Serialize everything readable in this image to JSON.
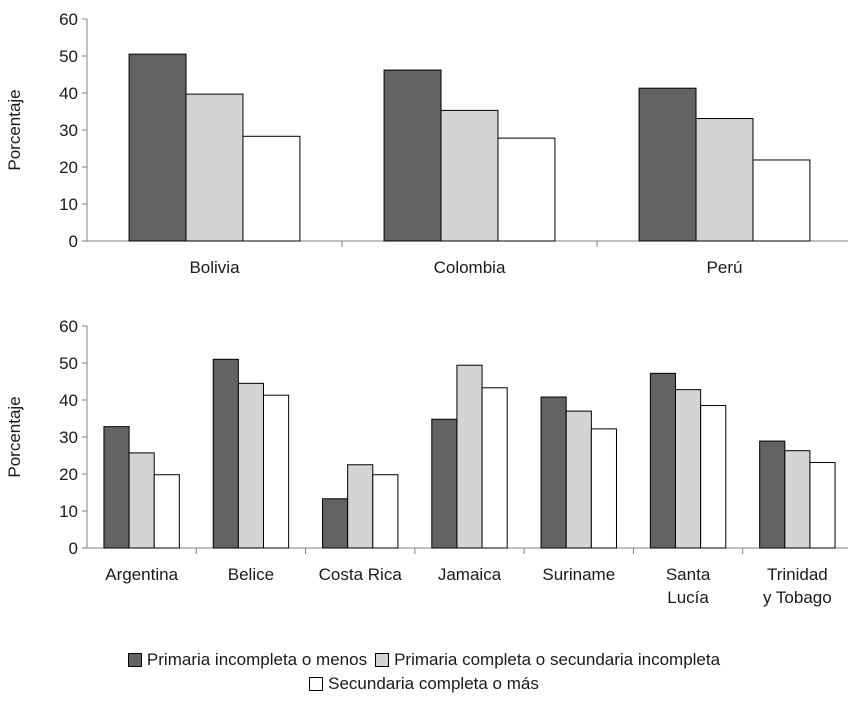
{
  "chart_data": [
    {
      "type": "bar",
      "ylabel": "Porcentaje",
      "ylim": [
        0,
        60
      ],
      "yticks": [
        0,
        10,
        20,
        30,
        40,
        50,
        60
      ],
      "categories": [
        "Bolivia",
        "Colombia",
        "Perú"
      ],
      "series": [
        {
          "name": "Primaria incompleta o menos",
          "values": [
            50.5,
            46.2,
            41.3
          ]
        },
        {
          "name": "Primaria completa o secundaria incompleta",
          "values": [
            39.7,
            35.3,
            33.1
          ]
        },
        {
          "name": "Secundaria completa o más",
          "values": [
            28.3,
            27.8,
            21.9
          ]
        }
      ]
    },
    {
      "type": "bar",
      "ylabel": "Porcentaje",
      "ylim": [
        0,
        60
      ],
      "yticks": [
        0,
        10,
        20,
        30,
        40,
        50,
        60
      ],
      "categories": [
        "Argentina",
        "Belice",
        "Costa Rica",
        "Jamaica",
        "Suriname",
        "Santa\nLucía",
        "Trinidad\ny Tobago"
      ],
      "series": [
        {
          "name": "Primaria incompleta o menos",
          "values": [
            32.8,
            51.0,
            13.3,
            34.8,
            40.8,
            47.2,
            28.9
          ]
        },
        {
          "name": "Primaria completa o secundaria incompleta",
          "values": [
            25.7,
            44.5,
            22.5,
            49.4,
            37.0,
            42.8,
            26.3
          ]
        },
        {
          "name": "Secundaria completa o más",
          "values": [
            19.8,
            41.3,
            19.8,
            43.3,
            32.2,
            38.5,
            23.1
          ]
        }
      ]
    }
  ],
  "legend": {
    "items": [
      {
        "label": "Primaria incompleta o menos",
        "color": "#636366"
      },
      {
        "label": "Primaria completa o secundaria incompleta",
        "color": "#d4d4d6"
      },
      {
        "label": "Secundaria completa o más",
        "color": "#ffffff"
      }
    ]
  }
}
